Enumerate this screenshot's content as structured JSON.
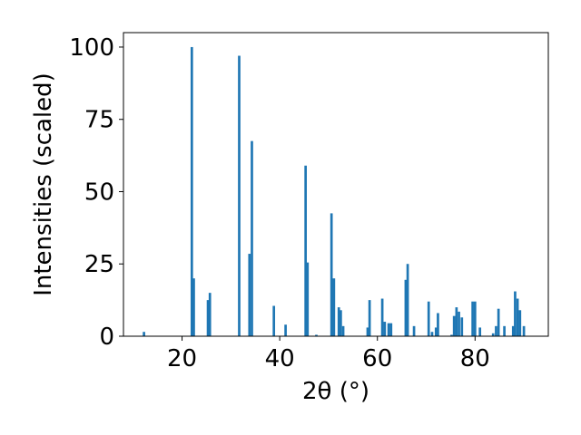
{
  "chart_data": {
    "type": "bar",
    "title": "",
    "xlabel": "2θ (°)",
    "ylabel": "Intensities (scaled)",
    "xlim": [
      8,
      95
    ],
    "ylim": [
      0,
      105
    ],
    "xticks": [
      20,
      40,
      60,
      80
    ],
    "yticks": [
      0,
      25,
      50,
      75,
      100
    ],
    "grid": false,
    "bar_color": "#1f77b4",
    "bar_width_deg": 0.5,
    "series": [
      {
        "x": [
          12.2,
          22.0,
          22.4,
          25.3,
          25.7,
          31.7,
          33.8,
          34.3,
          38.8,
          41.2,
          45.3,
          45.7,
          47.5,
          50.6,
          51.1,
          52.1,
          52.5,
          53.0,
          58.0,
          58.4,
          61.0,
          61.5,
          62.3,
          62.8,
          65.8,
          66.2,
          67.5,
          70.5,
          71.2,
          72.0,
          72.4,
          75.2,
          75.7,
          76.2,
          76.7,
          77.3,
          79.5,
          80.0,
          81.0,
          83.7,
          84.3,
          84.8,
          86.0,
          87.8,
          88.2,
          88.7,
          89.2,
          90.0
        ],
        "values": [
          1.5,
          100,
          20,
          12.5,
          15,
          97,
          28.5,
          67.5,
          10.5,
          4,
          59,
          25.5,
          0.5,
          42.5,
          20,
          10,
          9,
          3.5,
          3,
          12.5,
          13,
          5,
          4.5,
          4.5,
          19.5,
          25,
          3.5,
          12,
          1.5,
          3,
          8,
          0.5,
          7,
          10,
          8.5,
          6.5,
          12,
          12,
          3,
          1,
          3.5,
          9.5,
          3.5,
          3.5,
          15.5,
          13,
          9,
          3.5
        ]
      }
    ]
  }
}
